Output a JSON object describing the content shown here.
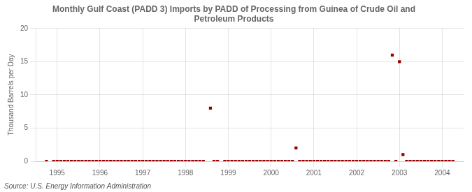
{
  "chart_data": {
    "type": "scatter",
    "title": "Monthly Gulf Coast (PADD 3) Imports by PADD of Processing from Guinea of Crude Oil and\nPetroleum Products",
    "ylabel": "Thousand Barrels per Day",
    "source": "Source: U.S. Energy Information Administration",
    "color": "#990000",
    "marker": "square",
    "grid": true,
    "xlim": [
      1994.5,
      2004.5
    ],
    "ylim": [
      0,
      20
    ],
    "xticks": [
      1995,
      1996,
      1997,
      1998,
      1999,
      2000,
      2001,
      2002,
      2003,
      2004
    ],
    "yticks": [
      0,
      5,
      10,
      15,
      20
    ],
    "x": [
      1994.75,
      1994.917,
      1995.0,
      1995.083,
      1995.167,
      1995.25,
      1995.333,
      1995.417,
      1995.5,
      1995.583,
      1995.667,
      1995.75,
      1995.833,
      1995.917,
      1996.0,
      1996.083,
      1996.167,
      1996.25,
      1996.333,
      1996.417,
      1996.5,
      1996.583,
      1996.667,
      1996.75,
      1996.833,
      1996.917,
      1997.0,
      1997.083,
      1997.167,
      1997.25,
      1997.333,
      1997.417,
      1997.5,
      1997.583,
      1997.667,
      1997.75,
      1997.833,
      1997.917,
      1998.0,
      1998.083,
      1998.167,
      1998.25,
      1998.333,
      1998.417,
      1998.583,
      1998.667,
      1998.75,
      1998.917,
      1999.0,
      1999.083,
      1999.167,
      1999.25,
      1999.333,
      1999.417,
      1999.5,
      1999.583,
      1999.667,
      1999.75,
      1999.833,
      1999.917,
      2000.0,
      2000.083,
      2000.167,
      2000.25,
      2000.333,
      2000.417,
      2000.5,
      2000.583,
      2000.667,
      2000.75,
      2000.833,
      2000.917,
      2001.0,
      2001.083,
      2001.167,
      2001.25,
      2001.333,
      2001.417,
      2001.5,
      2001.583,
      2001.667,
      2001.75,
      2001.833,
      2001.917,
      2002.0,
      2002.083,
      2002.167,
      2002.25,
      2002.333,
      2002.417,
      2002.5,
      2002.583,
      2002.667,
      2002.75,
      2002.833,
      2002.917,
      2003.0,
      2003.083,
      2003.167,
      2003.25,
      2003.333,
      2003.417,
      2003.5,
      2003.583,
      2003.667,
      2003.75,
      2003.833,
      2003.917,
      2004.0,
      2004.083,
      2004.167,
      2004.25
    ],
    "values": [
      0,
      0,
      0,
      0,
      0,
      0,
      0,
      0,
      0,
      0,
      0,
      0,
      0,
      0,
      0,
      0,
      0,
      0,
      0,
      0,
      0,
      0,
      0,
      0,
      0,
      0,
      0,
      0,
      0,
      0,
      0,
      0,
      0,
      0,
      0,
      0,
      0,
      0,
      0,
      0,
      0,
      0,
      0,
      0,
      8.0,
      0,
      0,
      0,
      0,
      0,
      0,
      0,
      0,
      0,
      0,
      0,
      0,
      0,
      0,
      0,
      0,
      0,
      0,
      0,
      0,
      0,
      0,
      2.0,
      0,
      0,
      0,
      0,
      0,
      0,
      0,
      0,
      0,
      0,
      0,
      0,
      0,
      0,
      0,
      0,
      0,
      0,
      0,
      0,
      0,
      0,
      0,
      0,
      0,
      0,
      16.0,
      0,
      15.0,
      1.0,
      0,
      0,
      0,
      0,
      0,
      0,
      0,
      0,
      0,
      0,
      0,
      0,
      0,
      0
    ]
  }
}
